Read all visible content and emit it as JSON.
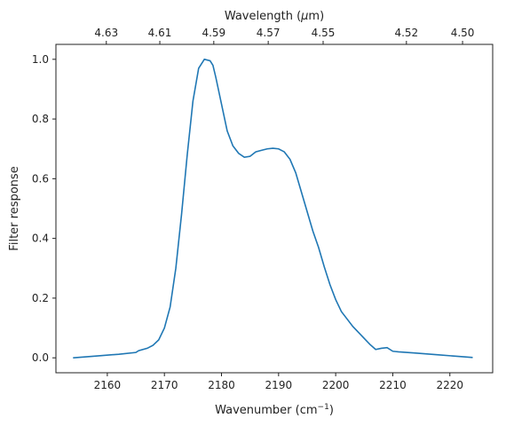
{
  "chart_data": {
    "type": "line",
    "title": "",
    "xlabel": "Wavenumber (cm",
    "xlabel_sup": "−1",
    "xlabel_suffix": ")",
    "ylabel": "Filter response",
    "top_xlabel": "Wavelength (",
    "top_xlabel_mu": "μ",
    "top_xlabel_suffix": "m)",
    "xlim": [
      2151,
      2227.5
    ],
    "ylim": [
      -0.05,
      1.05
    ],
    "x_ticks": [
      2160,
      2170,
      2180,
      2190,
      2200,
      2210,
      2220
    ],
    "x_tick_labels": [
      "2160",
      "2170",
      "2180",
      "2190",
      "2200",
      "2210",
      "2220"
    ],
    "y_ticks": [
      0.0,
      0.2,
      0.4,
      0.6,
      0.8,
      1.0
    ],
    "y_tick_labels": [
      "0.0",
      "0.2",
      "0.4",
      "0.6",
      "0.8",
      "1.0"
    ],
    "top_ticks_wavelength_um": [
      4.63,
      4.61,
      4.59,
      4.57,
      4.55,
      4.52,
      4.5
    ],
    "top_tick_labels": [
      "4.63",
      "4.61",
      "4.59",
      "4.57",
      "4.55",
      "4.52",
      "4.50"
    ],
    "grid": false,
    "legend": "none",
    "series": [
      {
        "color": "#1f77b4",
        "x": [
          2154.0,
          2158.0,
          2162.0,
          2165.0,
          2165.5,
          2167.0,
          2168.0,
          2169.0,
          2170.0,
          2171.0,
          2172.0,
          2173.0,
          2174.0,
          2175.0,
          2176.0,
          2177.0,
          2178.0,
          2178.5,
          2179.0,
          2180.0,
          2181.0,
          2182.0,
          2183.0,
          2184.0,
          2185.0,
          2186.0,
          2187.0,
          2188.0,
          2189.0,
          2190.0,
          2191.0,
          2192.0,
          2193.0,
          2194.0,
          2195.0,
          2196.0,
          2197.0,
          2198.0,
          2199.0,
          2200.0,
          2201.0,
          2202.0,
          2203.0,
          2204.0,
          2205.0,
          2206.0,
          2207.0,
          2208.0,
          2209.0,
          2210.0,
          2210.5,
          2211.0,
          2214.0,
          2218.0,
          2222.0,
          2224.0
        ],
        "y": [
          0.0,
          0.006,
          0.012,
          0.018,
          0.024,
          0.032,
          0.042,
          0.06,
          0.1,
          0.17,
          0.3,
          0.48,
          0.68,
          0.86,
          0.97,
          1.0,
          0.995,
          0.98,
          0.94,
          0.85,
          0.76,
          0.71,
          0.685,
          0.672,
          0.675,
          0.69,
          0.695,
          0.7,
          0.702,
          0.7,
          0.69,
          0.665,
          0.62,
          0.555,
          0.49,
          0.425,
          0.37,
          0.305,
          0.245,
          0.195,
          0.155,
          0.13,
          0.105,
          0.085,
          0.065,
          0.045,
          0.028,
          0.032,
          0.034,
          0.022,
          0.021,
          0.02,
          0.016,
          0.01,
          0.004,
          0.001
        ]
      }
    ]
  }
}
